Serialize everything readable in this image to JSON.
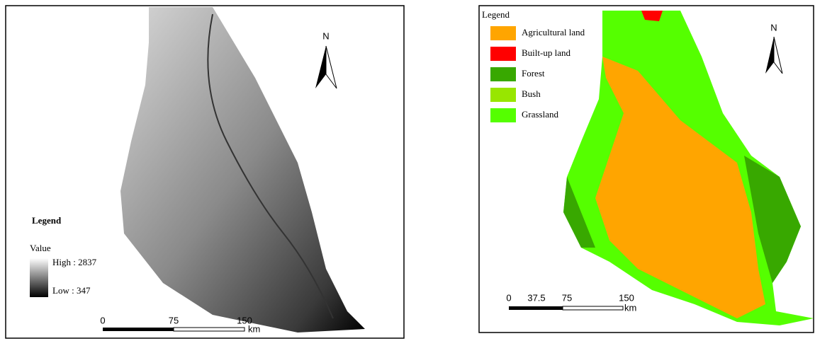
{
  "dem_map": {
    "legend_title": "Legend",
    "value_label": "Value",
    "high_label": "High : 2837",
    "low_label": "Low : 347",
    "north": "N",
    "scale_labels": [
      "0",
      "75",
      "150"
    ],
    "scale_unit": "km"
  },
  "landuse_map": {
    "legend_title": "Legend",
    "north": "N",
    "legend_items": [
      {
        "label": "Agricultural land",
        "color": "#ffa500"
      },
      {
        "label": "Built-up land",
        "color": "#ff0000"
      },
      {
        "label": "Forest",
        "color": "#38a800"
      },
      {
        "label": "Bush",
        "color": "#98e600"
      },
      {
        "label": "Grassland",
        "color": "#55ff00"
      }
    ],
    "scale_labels": [
      "0",
      "37.5",
      "75",
      "150"
    ],
    "scale_unit": "km"
  }
}
